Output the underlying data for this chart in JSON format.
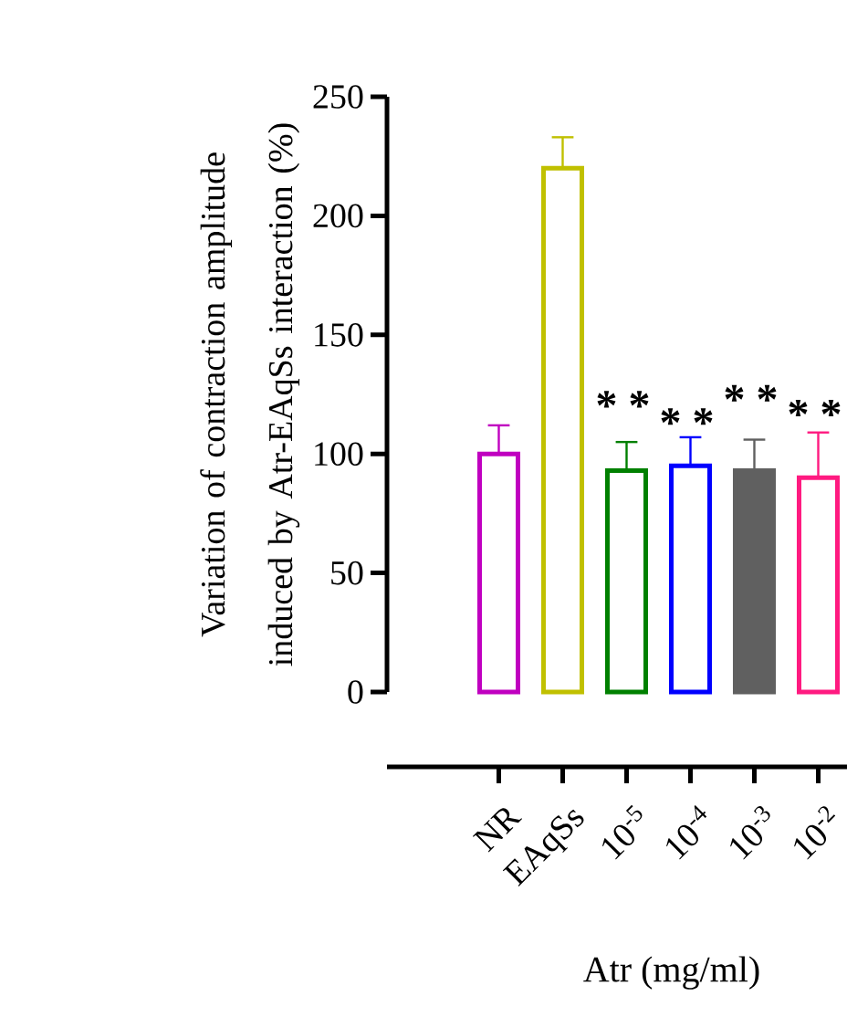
{
  "chart_data": {
    "type": "bar",
    "ylabel": "Variation of contraction amplitude induced by Atr-EAqSs interaction (%)",
    "xlabel": "Atr (mg/ml)",
    "categories": [
      "NR",
      "EAqSs",
      "10$^{-5}$",
      "10$^{-4}$",
      "10$^{-3}$",
      "10$^{-2}$"
    ],
    "values": [
      100,
      220,
      93,
      95,
      93,
      90
    ],
    "errors": [
      [
        100,
        112
      ],
      [
        220,
        233
      ],
      [
        93,
        105
      ],
      [
        95,
        107
      ],
      [
        93,
        106
      ],
      [
        90,
        109
      ]
    ],
    "colors": [
      "#c000c0",
      "#c0c000",
      "#008000",
      "#0000ff",
      "#606060",
      "#ff1a80"
    ],
    "ylim": [
      0,
      250
    ],
    "yticks": [
      0,
      50,
      100,
      150,
      200,
      250
    ],
    "annotations": [
      "* *",
      "* *",
      "* *",
      "* *"
    ]
  }
}
